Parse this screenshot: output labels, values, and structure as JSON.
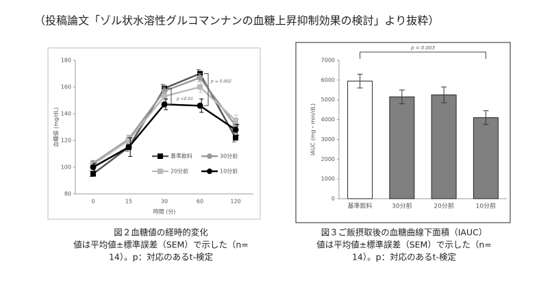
{
  "header": "（投稿論文「ゾル状水溶性グルコマンナンの血糖上昇抑制効果の検討」より抜粋）",
  "chart_data": [
    {
      "type": "line",
      "xlabel": "時間 (分)",
      "ylabel": "血糖値 (mg/dL)",
      "categories": [
        "0",
        "15",
        "30",
        "60",
        "120"
      ],
      "ylim": [
        80,
        180
      ],
      "yticks": [
        80,
        100,
        120,
        140,
        160,
        180
      ],
      "grid": false,
      "legend": "lower right",
      "series": [
        {
          "name": "基準飲料",
          "color": "#555555",
          "marker_color": "#000000",
          "marker": "square",
          "values": [
            95,
            115,
            159,
            170,
            122
          ],
          "errors": [
            2,
            3,
            3,
            3,
            3
          ]
        },
        {
          "name": "30分前",
          "color": "#999999",
          "marker_color": "#999999",
          "marker": "circle",
          "values": [
            103,
            121,
            157,
            167,
            131
          ],
          "errors": [
            2,
            3,
            3,
            3,
            3
          ]
        },
        {
          "name": "20分前",
          "color": "#bbbbbb",
          "marker_color": "#bbbbbb",
          "marker": "square",
          "values": [
            102,
            120,
            153,
            160,
            135
          ],
          "errors": [
            2,
            3,
            3,
            4,
            4
          ]
        },
        {
          "name": "10分前",
          "color": "#000000",
          "marker_color": "#000000",
          "marker": "circle",
          "values": [
            100,
            115,
            147,
            146,
            128
          ],
          "errors": [
            3,
            7,
            4,
            5,
            4
          ]
        }
      ],
      "annotations": [
        "p = 0.002",
        "p <0.01"
      ],
      "caption": [
        "図２血糖値の経時的変化",
        "値は平均値±標準誤差（SEM）で示した（n=",
        "14）。p：対応のあるt-検定"
      ]
    },
    {
      "type": "bar",
      "ylabel": "IAUC (mg・min/dL)",
      "categories": [
        "基準飲料",
        "30分前",
        "20分前",
        "10分前"
      ],
      "values": [
        5950,
        5150,
        5250,
        4100
      ],
      "errors": [
        350,
        350,
        400,
        350
      ],
      "colors": [
        "#ffffff",
        "#808080",
        "#808080",
        "#808080"
      ],
      "ylim": [
        0,
        7000
      ],
      "yticks": [
        0,
        1000,
        2000,
        3000,
        4000,
        5000,
        6000,
        7000
      ],
      "grid": false,
      "annotations": [
        "p = 0.003"
      ],
      "caption": [
        "図３ご飯摂取後の血糖曲線下面積（IAUC）",
        "値は平均値±標準誤差（SEM）で示した（n=",
        "14）。p：対応のあるt-検定"
      ]
    }
  ]
}
